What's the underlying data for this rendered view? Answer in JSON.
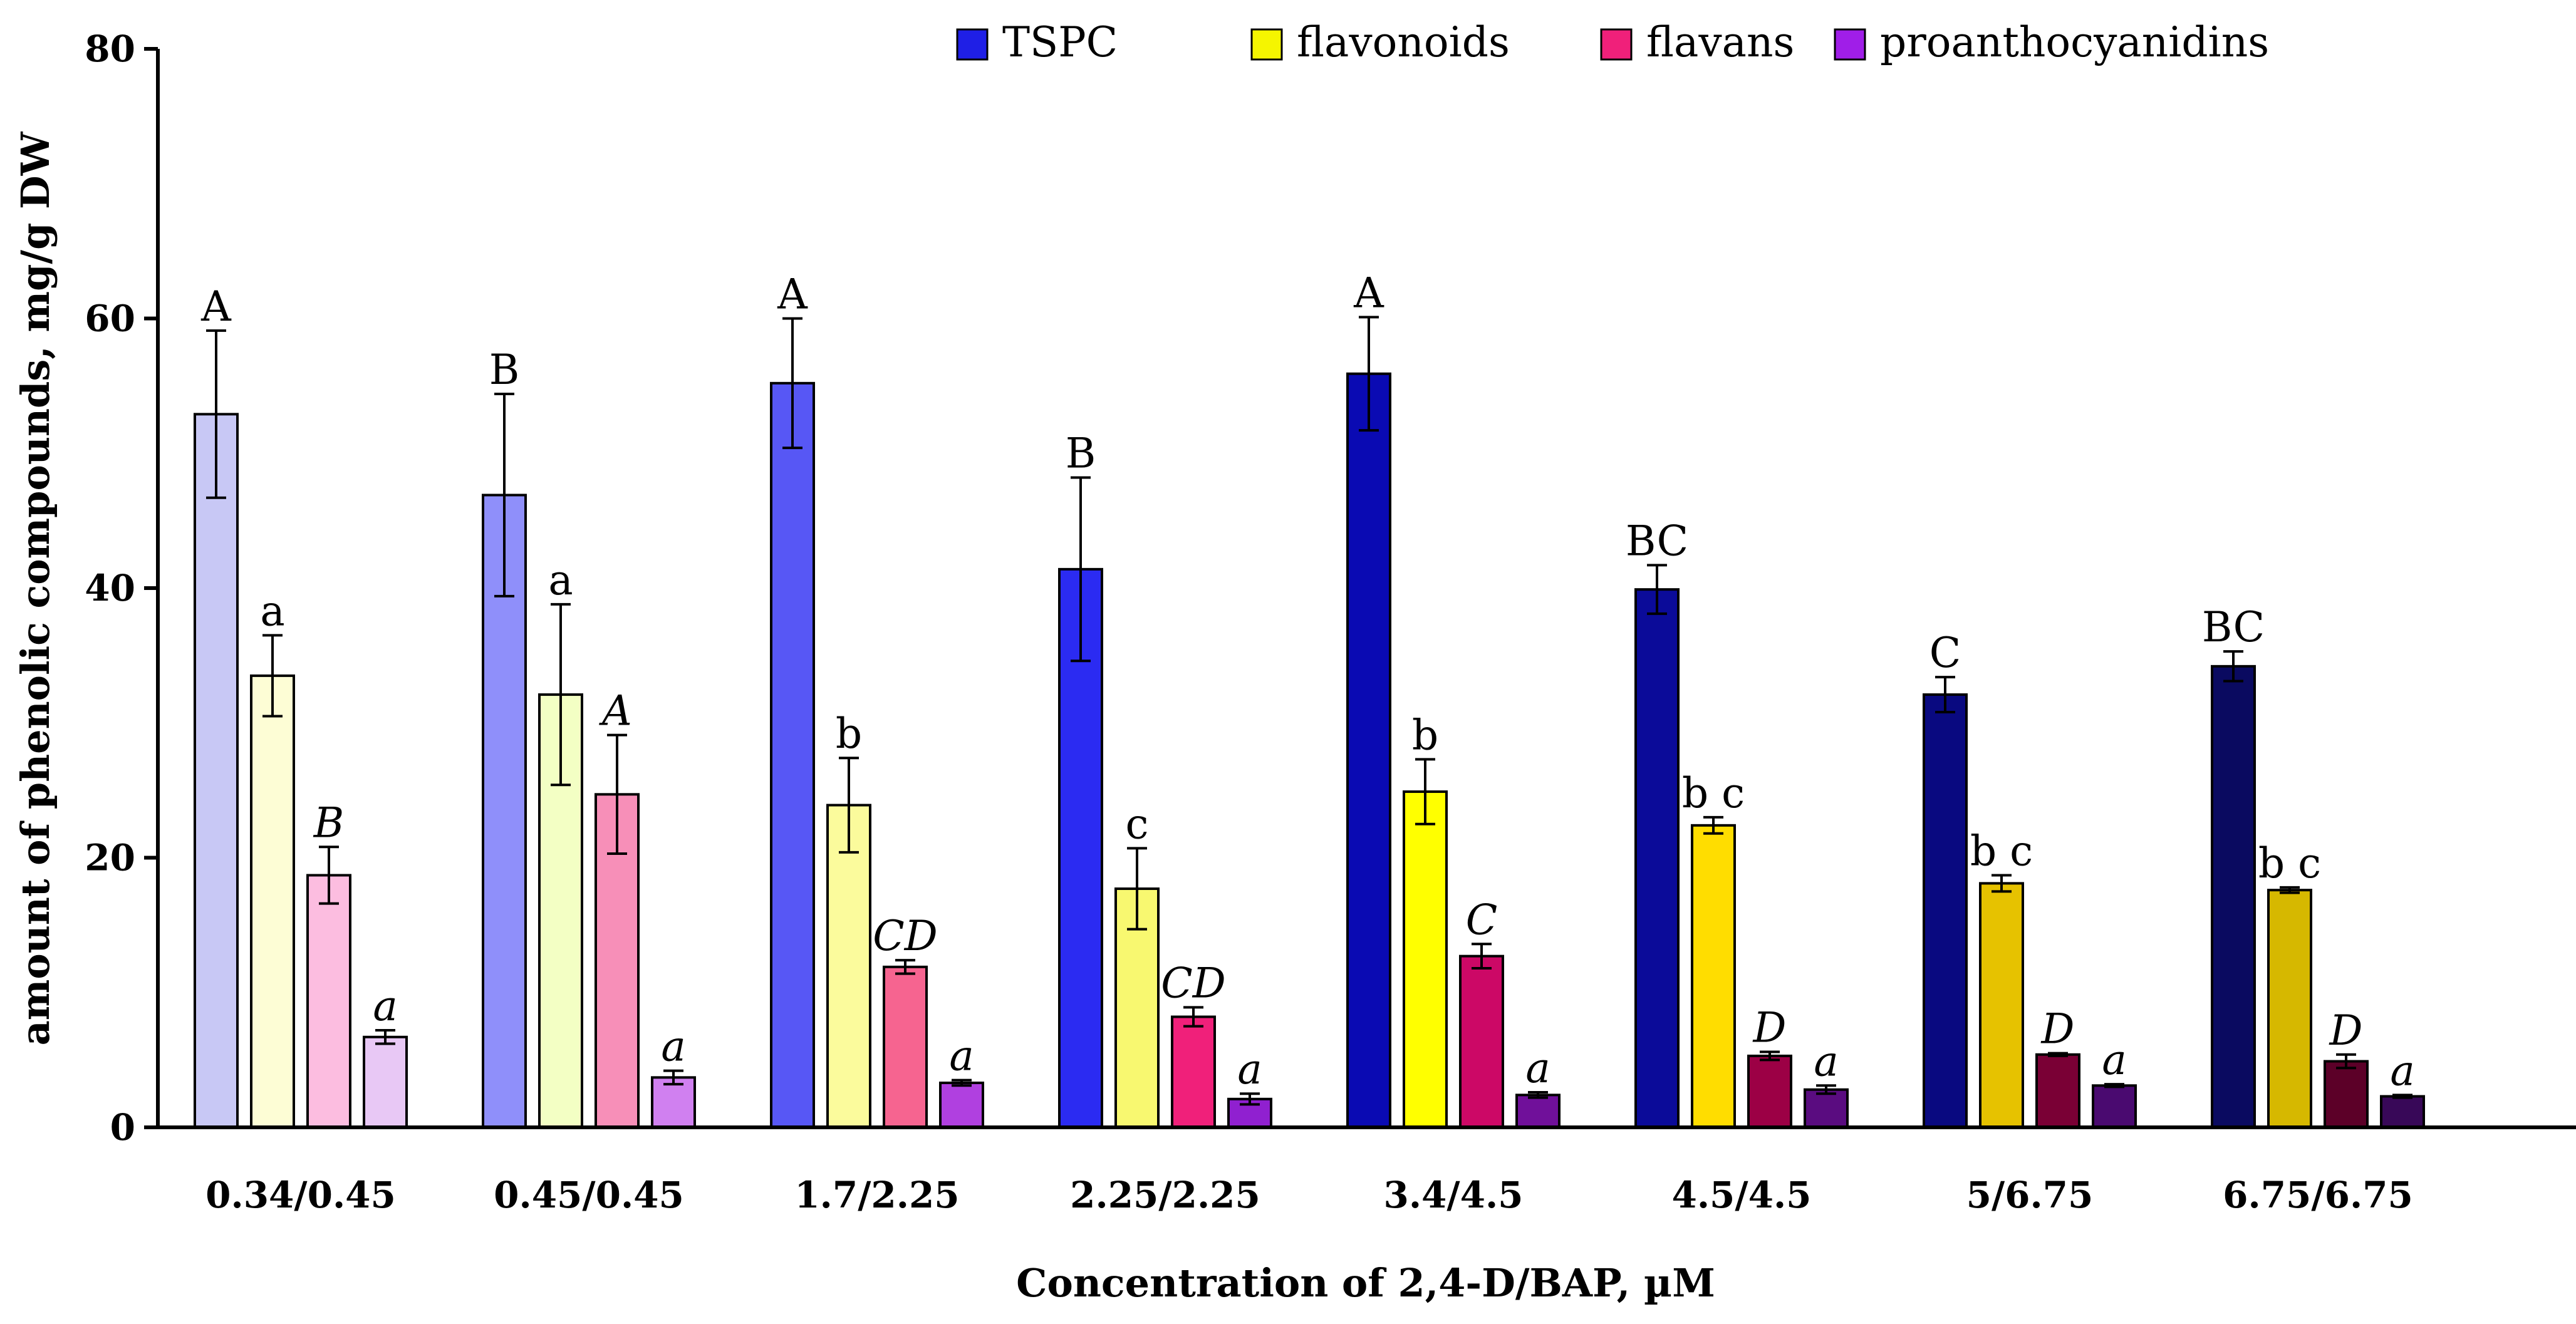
{
  "chart_data": {
    "type": "bar",
    "title": "",
    "xlabel": "Concentration of 2,4-D/BAP, µM",
    "ylabel": "amount of phenolic compounds, mg/g DW",
    "ylim": [
      0,
      80
    ],
    "yticks": [
      "0",
      "20",
      "40",
      "60",
      "80"
    ],
    "legend_position": "top-right",
    "categories": [
      "0.34/0.45",
      "0.45/0.45",
      "1.7/2.25",
      "2.25/2.25",
      "3.4/4.5",
      "4.5/4.5",
      "5/6.75",
      "6.75/6.75"
    ],
    "series": [
      {
        "name": "TSPC",
        "legend_color": "#1f1fe6",
        "colors": [
          "#c8c8f5",
          "#8f8ffa",
          "#5757f5",
          "#2b2bf2",
          "#0a0ab3",
          "#0b0b99",
          "#090980",
          "#0a0a60"
        ],
        "values": [
          52.9,
          46.9,
          55.2,
          41.4,
          55.9,
          39.9,
          32.1,
          34.2
        ],
        "errors": [
          6.2,
          7.5,
          4.8,
          6.8,
          4.2,
          1.8,
          1.3,
          1.1
        ],
        "labels": [
          "A",
          "B",
          "A",
          "B",
          "A",
          "BC",
          "C",
          "BC"
        ],
        "label_italic": false
      },
      {
        "name": "flavonoids",
        "legend_color": "#f5f500",
        "colors": [
          "#fdfdd5",
          "#f3ffc4",
          "#fbfb9c",
          "#f8f870",
          "#ffff00",
          "#ffdd00",
          "#e6c200",
          "#d6b800"
        ],
        "values": [
          33.5,
          32.1,
          23.9,
          17.7,
          24.9,
          22.4,
          18.1,
          17.6
        ],
        "errors": [
          3.0,
          6.7,
          3.5,
          3.0,
          2.4,
          0.6,
          0.6,
          0.2
        ],
        "labels": [
          "a",
          "a",
          "b",
          "c",
          "b",
          "b c",
          "b c",
          "b c"
        ],
        "label_italic": false
      },
      {
        "name": "flavans",
        "legend_color": "#f0207a",
        "colors": [
          "#fcbde0",
          "#f78fb8",
          "#f66490",
          "#f0207a",
          "#cc0866",
          "#9c0045",
          "#7a0035",
          "#5c0028"
        ],
        "values": [
          18.7,
          24.7,
          11.9,
          8.2,
          12.7,
          5.3,
          5.4,
          4.9
        ],
        "errors": [
          2.1,
          4.4,
          0.5,
          0.7,
          0.9,
          0.3,
          0.1,
          0.5
        ],
        "labels": [
          "B",
          "A",
          "CD",
          "CD",
          "C",
          "D",
          "D",
          "D"
        ],
        "label_italic": true
      },
      {
        "name": "proanthocyanidins",
        "legend_color": "#a01ee8",
        "colors": [
          "#e8c8f5",
          "#d080f0",
          "#b040e0",
          "#9020d0",
          "#70109a",
          "#5a0c80",
          "#4a0a70",
          "#380858"
        ],
        "values": [
          6.7,
          3.7,
          3.3,
          2.1,
          2.4,
          2.8,
          3.1,
          2.3
        ],
        "errors": [
          0.5,
          0.5,
          0.2,
          0.4,
          0.2,
          0.3,
          0.1,
          0.1
        ],
        "labels": [
          "a",
          "a",
          "a",
          "a",
          "a",
          "a",
          "a",
          "a"
        ],
        "label_italic": true
      }
    ]
  }
}
